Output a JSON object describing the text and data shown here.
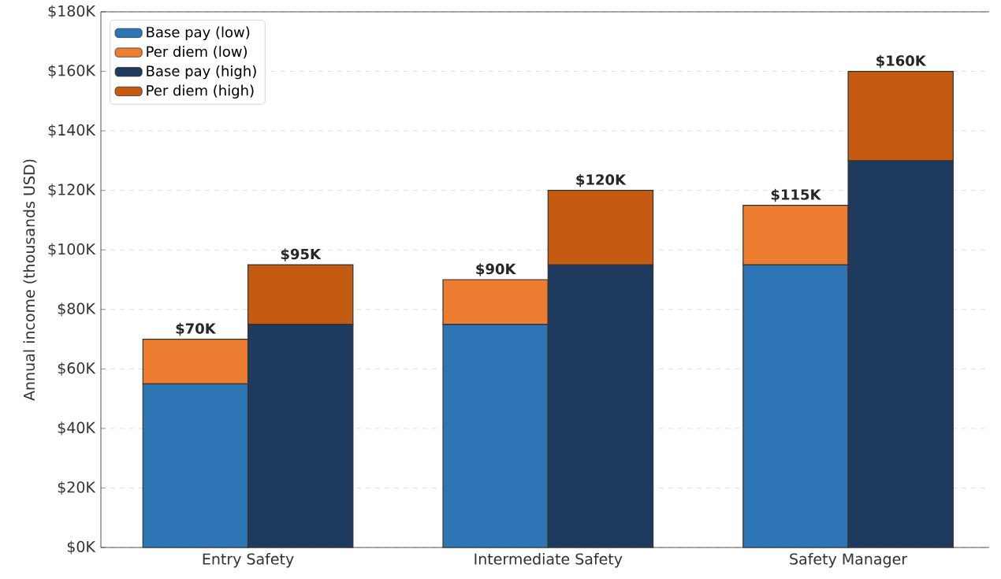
{
  "chart_data": {
    "type": "bar",
    "ylabel": "Annual income (thousands USD)",
    "categories": [
      "Entry Safety",
      "Intermediate Safety",
      "Safety Manager"
    ],
    "series": [
      {
        "name": "Base pay (low)",
        "color": "#2e75b6",
        "values": [
          55,
          75,
          95
        ],
        "base": [
          0,
          0,
          0
        ]
      },
      {
        "name": "Per diem (low)",
        "color": "#ed7d31",
        "values": [
          15,
          15,
          20
        ],
        "base": [
          55,
          75,
          95
        ]
      },
      {
        "name": "Base pay (high)",
        "color": "#1f3a5f",
        "values": [
          75,
          95,
          130
        ],
        "base": [
          0,
          0,
          0
        ]
      },
      {
        "name": "Per diem (high)",
        "color": "#c55a11",
        "values": [
          20,
          25,
          30
        ],
        "base": [
          75,
          95,
          130
        ]
      }
    ],
    "annotations": [
      {
        "text": "$70K",
        "x": "Entry Safety",
        "y": 70
      },
      {
        "text": "$95K",
        "x": "Entry Safety",
        "y": 95
      },
      {
        "text": "$90K",
        "x": "Intermediate Safety",
        "y": 90
      },
      {
        "text": "$120K",
        "x": "Intermediate Safety",
        "y": 120
      },
      {
        "text": "$115K",
        "x": "Safety Manager",
        "y": 115
      },
      {
        "text": "$160K",
        "x": "Safety Manager",
        "y": 160
      }
    ],
    "ylim": [
      0,
      180
    ],
    "yticks": [
      {
        "value": 0,
        "label": "$0K"
      },
      {
        "value": 20,
        "label": "$20K"
      },
      {
        "value": 40,
        "label": "$40K"
      },
      {
        "value": 60,
        "label": "$60K"
      },
      {
        "value": 80,
        "label": "$80K"
      },
      {
        "value": 100,
        "label": "$100K"
      },
      {
        "value": 120,
        "label": "$120K"
      },
      {
        "value": 140,
        "label": "$140K"
      },
      {
        "value": 160,
        "label": "$160K"
      },
      {
        "value": 180,
        "label": "$180K"
      }
    ],
    "grid": "y",
    "legend": "top left"
  }
}
